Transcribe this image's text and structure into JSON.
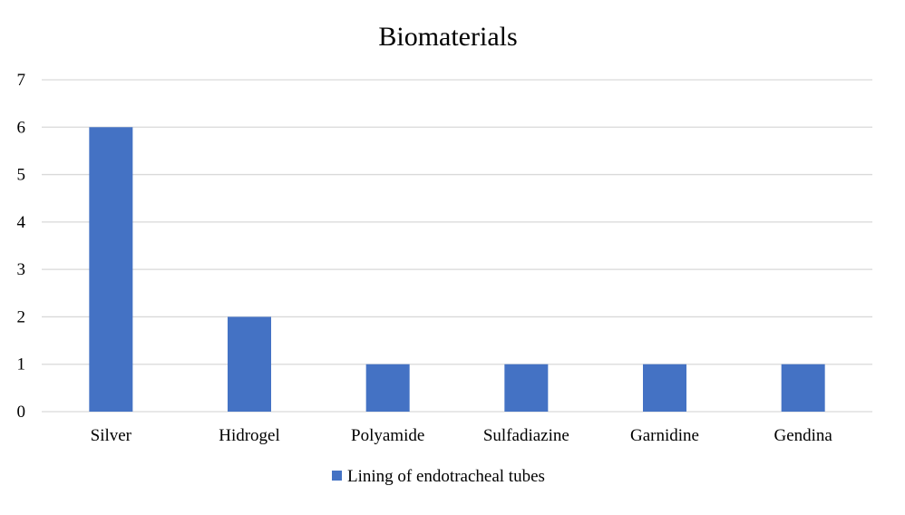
{
  "chart_data": {
    "type": "bar",
    "title": "Biomaterials",
    "categories": [
      "Silver",
      "Hidrogel",
      "Polyamide",
      "Sulfadiazine",
      "Garnidine",
      "Gendina"
    ],
    "series": [
      {
        "name": "Lining of endotracheal tubes",
        "values": [
          6,
          2,
          1,
          1,
          1,
          1
        ],
        "color": "#4472c4"
      }
    ],
    "xlabel": "",
    "ylabel": "",
    "ylim": [
      0,
      7
    ],
    "yticks": [
      0,
      1,
      2,
      3,
      4,
      5,
      6,
      7
    ],
    "grid": true,
    "legend_position": "bottom"
  }
}
